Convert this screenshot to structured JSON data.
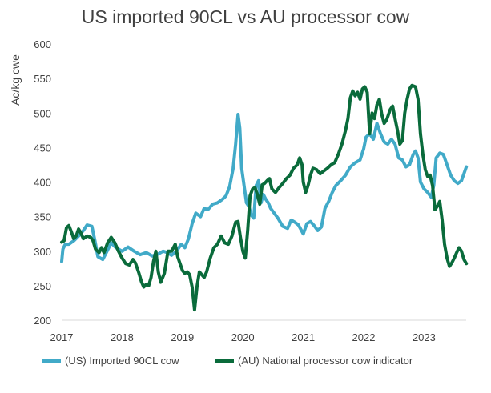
{
  "chart_data": {
    "type": "line",
    "title": "US imported 90CL vs AU processor cow",
    "ylabel": "Ac/kg cwe",
    "xlabel": "",
    "ylim": [
      200,
      600
    ],
    "xlim": [
      2017,
      2023.7
    ],
    "y_ticks": [
      "600",
      "550",
      "500",
      "450",
      "400",
      "350",
      "300",
      "250",
      "200"
    ],
    "x_ticks": [
      "2017",
      "2018",
      "2019",
      "2020",
      "2021",
      "2022",
      "2023"
    ],
    "grid": false,
    "legend": "bottom",
    "series": [
      {
        "name": "(US) Imported 90CL cow",
        "color": "#41aac8",
        "points": [
          [
            2017.0,
            285
          ],
          [
            2017.02,
            303
          ],
          [
            2017.06,
            310
          ],
          [
            2017.12,
            310
          ],
          [
            2017.2,
            315
          ],
          [
            2017.28,
            322
          ],
          [
            2017.36,
            330
          ],
          [
            2017.42,
            338
          ],
          [
            2017.5,
            336
          ],
          [
            2017.55,
            315
          ],
          [
            2017.6,
            292
          ],
          [
            2017.68,
            288
          ],
          [
            2017.75,
            300
          ],
          [
            2017.82,
            312
          ],
          [
            2017.9,
            305
          ],
          [
            2018.0,
            300
          ],
          [
            2018.1,
            306
          ],
          [
            2018.2,
            300
          ],
          [
            2018.3,
            295
          ],
          [
            2018.4,
            298
          ],
          [
            2018.5,
            293
          ],
          [
            2018.6,
            296
          ],
          [
            2018.68,
            300
          ],
          [
            2018.75,
            298
          ],
          [
            2018.82,
            294
          ],
          [
            2018.9,
            300
          ],
          [
            2018.98,
            310
          ],
          [
            2019.04,
            305
          ],
          [
            2019.1,
            318
          ],
          [
            2019.16,
            340
          ],
          [
            2019.22,
            355
          ],
          [
            2019.3,
            350
          ],
          [
            2019.36,
            362
          ],
          [
            2019.42,
            360
          ],
          [
            2019.5,
            368
          ],
          [
            2019.58,
            370
          ],
          [
            2019.66,
            375
          ],
          [
            2019.72,
            380
          ],
          [
            2019.78,
            393
          ],
          [
            2019.84,
            420
          ],
          [
            2019.88,
            455
          ],
          [
            2019.92,
            498
          ],
          [
            2019.95,
            478
          ],
          [
            2019.98,
            420
          ],
          [
            2020.02,
            395
          ],
          [
            2020.06,
            370
          ],
          [
            2020.1,
            365
          ],
          [
            2020.14,
            352
          ],
          [
            2020.18,
            348
          ],
          [
            2020.22,
            395
          ],
          [
            2020.26,
            402
          ],
          [
            2020.3,
            370
          ],
          [
            2020.34,
            382
          ],
          [
            2020.38,
            375
          ],
          [
            2020.42,
            370
          ],
          [
            2020.46,
            362
          ],
          [
            2020.52,
            355
          ],
          [
            2020.58,
            348
          ],
          [
            2020.66,
            336
          ],
          [
            2020.74,
            333
          ],
          [
            2020.8,
            345
          ],
          [
            2020.86,
            342
          ],
          [
            2020.92,
            338
          ],
          [
            2021.0,
            325
          ],
          [
            2021.06,
            340
          ],
          [
            2021.12,
            343
          ],
          [
            2021.18,
            337
          ],
          [
            2021.24,
            330
          ],
          [
            2021.3,
            335
          ],
          [
            2021.36,
            362
          ],
          [
            2021.42,
            372
          ],
          [
            2021.48,
            385
          ],
          [
            2021.54,
            395
          ],
          [
            2021.62,
            402
          ],
          [
            2021.7,
            410
          ],
          [
            2021.78,
            422
          ],
          [
            2021.86,
            428
          ],
          [
            2021.94,
            432
          ],
          [
            2022.0,
            448
          ],
          [
            2022.04,
            465
          ],
          [
            2022.1,
            470
          ],
          [
            2022.16,
            462
          ],
          [
            2022.22,
            485
          ],
          [
            2022.28,
            470
          ],
          [
            2022.34,
            458
          ],
          [
            2022.4,
            455
          ],
          [
            2022.46,
            462
          ],
          [
            2022.52,
            455
          ],
          [
            2022.58,
            435
          ],
          [
            2022.64,
            432
          ],
          [
            2022.7,
            422
          ],
          [
            2022.76,
            425
          ],
          [
            2022.82,
            440
          ],
          [
            2022.86,
            445
          ],
          [
            2022.9,
            435
          ],
          [
            2022.94,
            400
          ],
          [
            2023.0,
            390
          ],
          [
            2023.06,
            385
          ],
          [
            2023.12,
            378
          ],
          [
            2023.16,
            395
          ],
          [
            2023.2,
            435
          ],
          [
            2023.26,
            442
          ],
          [
            2023.32,
            440
          ],
          [
            2023.38,
            425
          ],
          [
            2023.44,
            410
          ],
          [
            2023.5,
            402
          ],
          [
            2023.56,
            398
          ],
          [
            2023.62,
            402
          ],
          [
            2023.66,
            412
          ],
          [
            2023.7,
            422
          ]
        ]
      },
      {
        "name": "(AU) National processor cow indicator",
        "color": "#0a6b3b",
        "points": [
          [
            2017.0,
            313
          ],
          [
            2017.04,
            315
          ],
          [
            2017.08,
            334
          ],
          [
            2017.12,
            337
          ],
          [
            2017.16,
            328
          ],
          [
            2017.2,
            318
          ],
          [
            2017.24,
            322
          ],
          [
            2017.28,
            332
          ],
          [
            2017.32,
            326
          ],
          [
            2017.36,
            318
          ],
          [
            2017.42,
            322
          ],
          [
            2017.48,
            320
          ],
          [
            2017.52,
            315
          ],
          [
            2017.56,
            303
          ],
          [
            2017.62,
            298
          ],
          [
            2017.66,
            305
          ],
          [
            2017.7,
            298
          ],
          [
            2017.76,
            312
          ],
          [
            2017.82,
            320
          ],
          [
            2017.88,
            312
          ],
          [
            2017.94,
            300
          ],
          [
            2018.0,
            290
          ],
          [
            2018.06,
            282
          ],
          [
            2018.12,
            280
          ],
          [
            2018.18,
            288
          ],
          [
            2018.22,
            283
          ],
          [
            2018.28,
            268
          ],
          [
            2018.32,
            256
          ],
          [
            2018.36,
            248
          ],
          [
            2018.4,
            252
          ],
          [
            2018.44,
            250
          ],
          [
            2018.48,
            262
          ],
          [
            2018.52,
            285
          ],
          [
            2018.56,
            300
          ],
          [
            2018.6,
            270
          ],
          [
            2018.64,
            255
          ],
          [
            2018.7,
            268
          ],
          [
            2018.76,
            300
          ],
          [
            2018.82,
            300
          ],
          [
            2018.88,
            310
          ],
          [
            2018.92,
            292
          ],
          [
            2018.96,
            282
          ],
          [
            2019.0,
            272
          ],
          [
            2019.04,
            268
          ],
          [
            2019.08,
            270
          ],
          [
            2019.12,
            266
          ],
          [
            2019.16,
            248
          ],
          [
            2019.2,
            215
          ],
          [
            2019.24,
            248
          ],
          [
            2019.28,
            270
          ],
          [
            2019.32,
            266
          ],
          [
            2019.36,
            262
          ],
          [
            2019.4,
            270
          ],
          [
            2019.46,
            290
          ],
          [
            2019.52,
            305
          ],
          [
            2019.58,
            310
          ],
          [
            2019.64,
            322
          ],
          [
            2019.7,
            312
          ],
          [
            2019.76,
            310
          ],
          [
            2019.82,
            322
          ],
          [
            2019.88,
            342
          ],
          [
            2019.92,
            343
          ],
          [
            2019.96,
            320
          ],
          [
            2020.0,
            300
          ],
          [
            2020.04,
            290
          ],
          [
            2020.08,
            330
          ],
          [
            2020.12,
            380
          ],
          [
            2020.16,
            390
          ],
          [
            2020.2,
            392
          ],
          [
            2020.24,
            382
          ],
          [
            2020.28,
            368
          ],
          [
            2020.32,
            396
          ],
          [
            2020.36,
            398
          ],
          [
            2020.4,
            402
          ],
          [
            2020.44,
            405
          ],
          [
            2020.48,
            390
          ],
          [
            2020.54,
            385
          ],
          [
            2020.6,
            392
          ],
          [
            2020.66,
            398
          ],
          [
            2020.72,
            405
          ],
          [
            2020.78,
            410
          ],
          [
            2020.84,
            420
          ],
          [
            2020.9,
            425
          ],
          [
            2020.94,
            435
          ],
          [
            2020.98,
            425
          ],
          [
            2021.0,
            400
          ],
          [
            2021.04,
            385
          ],
          [
            2021.08,
            395
          ],
          [
            2021.12,
            410
          ],
          [
            2021.16,
            420
          ],
          [
            2021.22,
            418
          ],
          [
            2021.28,
            412
          ],
          [
            2021.34,
            416
          ],
          [
            2021.4,
            420
          ],
          [
            2021.46,
            425
          ],
          [
            2021.52,
            428
          ],
          [
            2021.58,
            440
          ],
          [
            2021.64,
            455
          ],
          [
            2021.7,
            475
          ],
          [
            2021.74,
            492
          ],
          [
            2021.78,
            522
          ],
          [
            2021.82,
            532
          ],
          [
            2021.86,
            525
          ],
          [
            2021.9,
            530
          ],
          [
            2021.94,
            520
          ],
          [
            2021.98,
            535
          ],
          [
            2022.02,
            538
          ],
          [
            2022.06,
            530
          ],
          [
            2022.1,
            470
          ],
          [
            2022.14,
            500
          ],
          [
            2022.18,
            492
          ],
          [
            2022.22,
            512
          ],
          [
            2022.26,
            520
          ],
          [
            2022.3,
            498
          ],
          [
            2022.34,
            485
          ],
          [
            2022.38,
            490
          ],
          [
            2022.44,
            505
          ],
          [
            2022.48,
            510
          ],
          [
            2022.52,
            492
          ],
          [
            2022.56,
            475
          ],
          [
            2022.6,
            455
          ],
          [
            2022.64,
            460
          ],
          [
            2022.68,
            500
          ],
          [
            2022.72,
            520
          ],
          [
            2022.76,
            535
          ],
          [
            2022.8,
            540
          ],
          [
            2022.86,
            538
          ],
          [
            2022.9,
            520
          ],
          [
            2022.94,
            470
          ],
          [
            2022.98,
            440
          ],
          [
            2023.02,
            418
          ],
          [
            2023.06,
            408
          ],
          [
            2023.1,
            410
          ],
          [
            2023.14,
            395
          ],
          [
            2023.18,
            360
          ],
          [
            2023.22,
            365
          ],
          [
            2023.26,
            372
          ],
          [
            2023.3,
            345
          ],
          [
            2023.34,
            310
          ],
          [
            2023.38,
            290
          ],
          [
            2023.42,
            278
          ],
          [
            2023.46,
            283
          ],
          [
            2023.5,
            290
          ],
          [
            2023.54,
            298
          ],
          [
            2023.58,
            305
          ],
          [
            2023.62,
            300
          ],
          [
            2023.66,
            288
          ],
          [
            2023.7,
            282
          ]
        ]
      }
    ]
  }
}
